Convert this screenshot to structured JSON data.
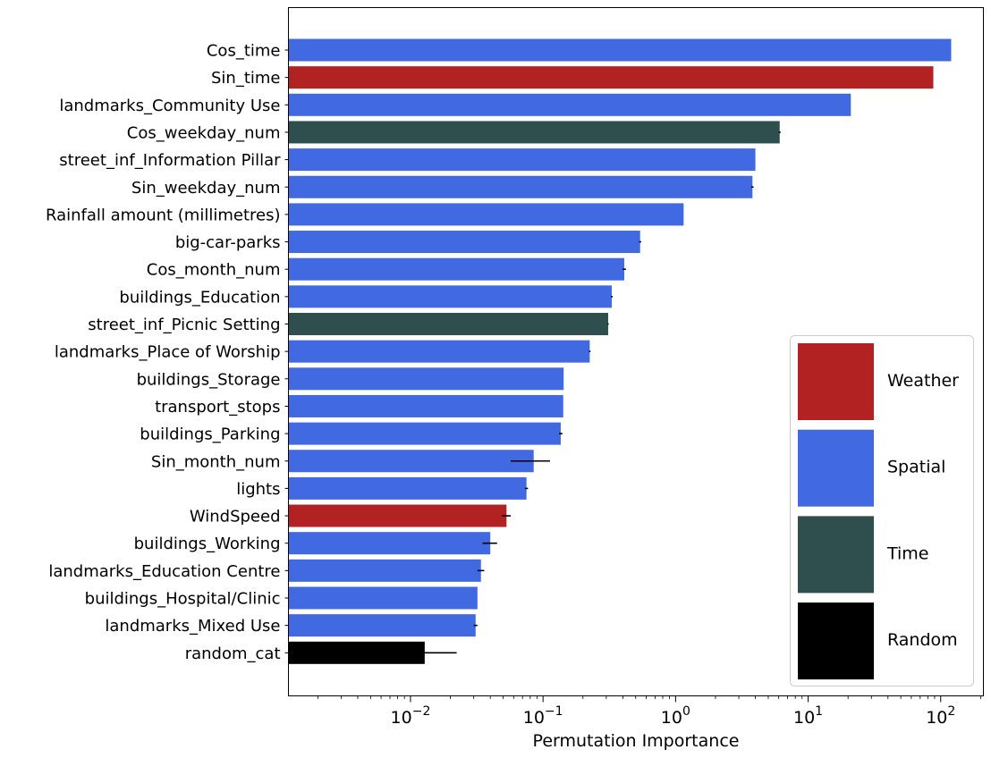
{
  "chart_data": {
    "type": "bar",
    "orientation": "horizontal",
    "title": "",
    "xlabel": "Permutation Importance",
    "ylabel": "",
    "x_scale": "log",
    "xlim": [
      0.0012,
      210
    ],
    "x_ticks": [
      {
        "value": 0.01,
        "base": "10",
        "exp": "−2"
      },
      {
        "value": 0.1,
        "base": "10",
        "exp": "−1"
      },
      {
        "value": 1,
        "base": "10",
        "exp": "0"
      },
      {
        "value": 10,
        "base": "10",
        "exp": "1"
      },
      {
        "value": 100,
        "base": "10",
        "exp": "2"
      }
    ],
    "grid": false,
    "legend_position": "lower-right",
    "groups": [
      {
        "name": "Weather",
        "color": "#b22222"
      },
      {
        "name": "Spatial",
        "color": "#4169e1"
      },
      {
        "name": "Time",
        "color": "#2f4f4f"
      },
      {
        "name": "Random",
        "color": "#000000"
      }
    ],
    "bars": [
      {
        "label": "Cos_time",
        "value": 120,
        "err": 0,
        "group": "Spatial"
      },
      {
        "label": "Sin_time",
        "value": 88,
        "err": 0,
        "group": "Weather"
      },
      {
        "label": "landmarks_Community Use",
        "value": 21,
        "err": 0,
        "group": "Spatial"
      },
      {
        "label": "Cos_weekday_num",
        "value": 6.1,
        "err": 0.1,
        "group": "Time"
      },
      {
        "label": "street_inf_Information Pillar",
        "value": 4.0,
        "err": 0,
        "group": "Spatial"
      },
      {
        "label": "Sin_weekday_num",
        "value": 3.8,
        "err": 0.08,
        "group": "Spatial"
      },
      {
        "label": "Rainfall amount (millimetres)",
        "value": 1.15,
        "err": 0,
        "group": "Spatial"
      },
      {
        "label": "big-car-parks",
        "value": 0.54,
        "err": 0.01,
        "group": "Spatial"
      },
      {
        "label": "Cos_month_num",
        "value": 0.41,
        "err": 0.012,
        "group": "Spatial"
      },
      {
        "label": "buildings_Education",
        "value": 0.33,
        "err": 0.005,
        "group": "Spatial"
      },
      {
        "label": "street_inf_Picnic Setting",
        "value": 0.31,
        "err": 0.003,
        "group": "Time"
      },
      {
        "label": "landmarks_Place of Worship",
        "value": 0.225,
        "err": 0.003,
        "group": "Spatial"
      },
      {
        "label": "buildings_Storage",
        "value": 0.143,
        "err": 0,
        "group": "Spatial"
      },
      {
        "label": "transport_stops",
        "value": 0.142,
        "err": 0,
        "group": "Spatial"
      },
      {
        "label": "buildings_Parking",
        "value": 0.136,
        "err": 0.004,
        "group": "Spatial"
      },
      {
        "label": "Sin_month_num",
        "value": 0.085,
        "err": 0.028,
        "group": "Spatial"
      },
      {
        "label": "lights",
        "value": 0.075,
        "err": 0.002,
        "group": "Spatial"
      },
      {
        "label": "WindSpeed",
        "value": 0.053,
        "err": 0.004,
        "group": "Weather"
      },
      {
        "label": "buildings_Working",
        "value": 0.04,
        "err": 0.005,
        "group": "Spatial"
      },
      {
        "label": "landmarks_Education Centre",
        "value": 0.034,
        "err": 0.002,
        "group": "Spatial"
      },
      {
        "label": "buildings_Hospital/Clinic",
        "value": 0.032,
        "err": 0,
        "group": "Spatial"
      },
      {
        "label": "landmarks_Mixed Use",
        "value": 0.031,
        "err": 0.001,
        "group": "Spatial"
      },
      {
        "label": "random_cat",
        "value": 0.0128,
        "err": 0.0095,
        "group": "Random"
      }
    ]
  }
}
